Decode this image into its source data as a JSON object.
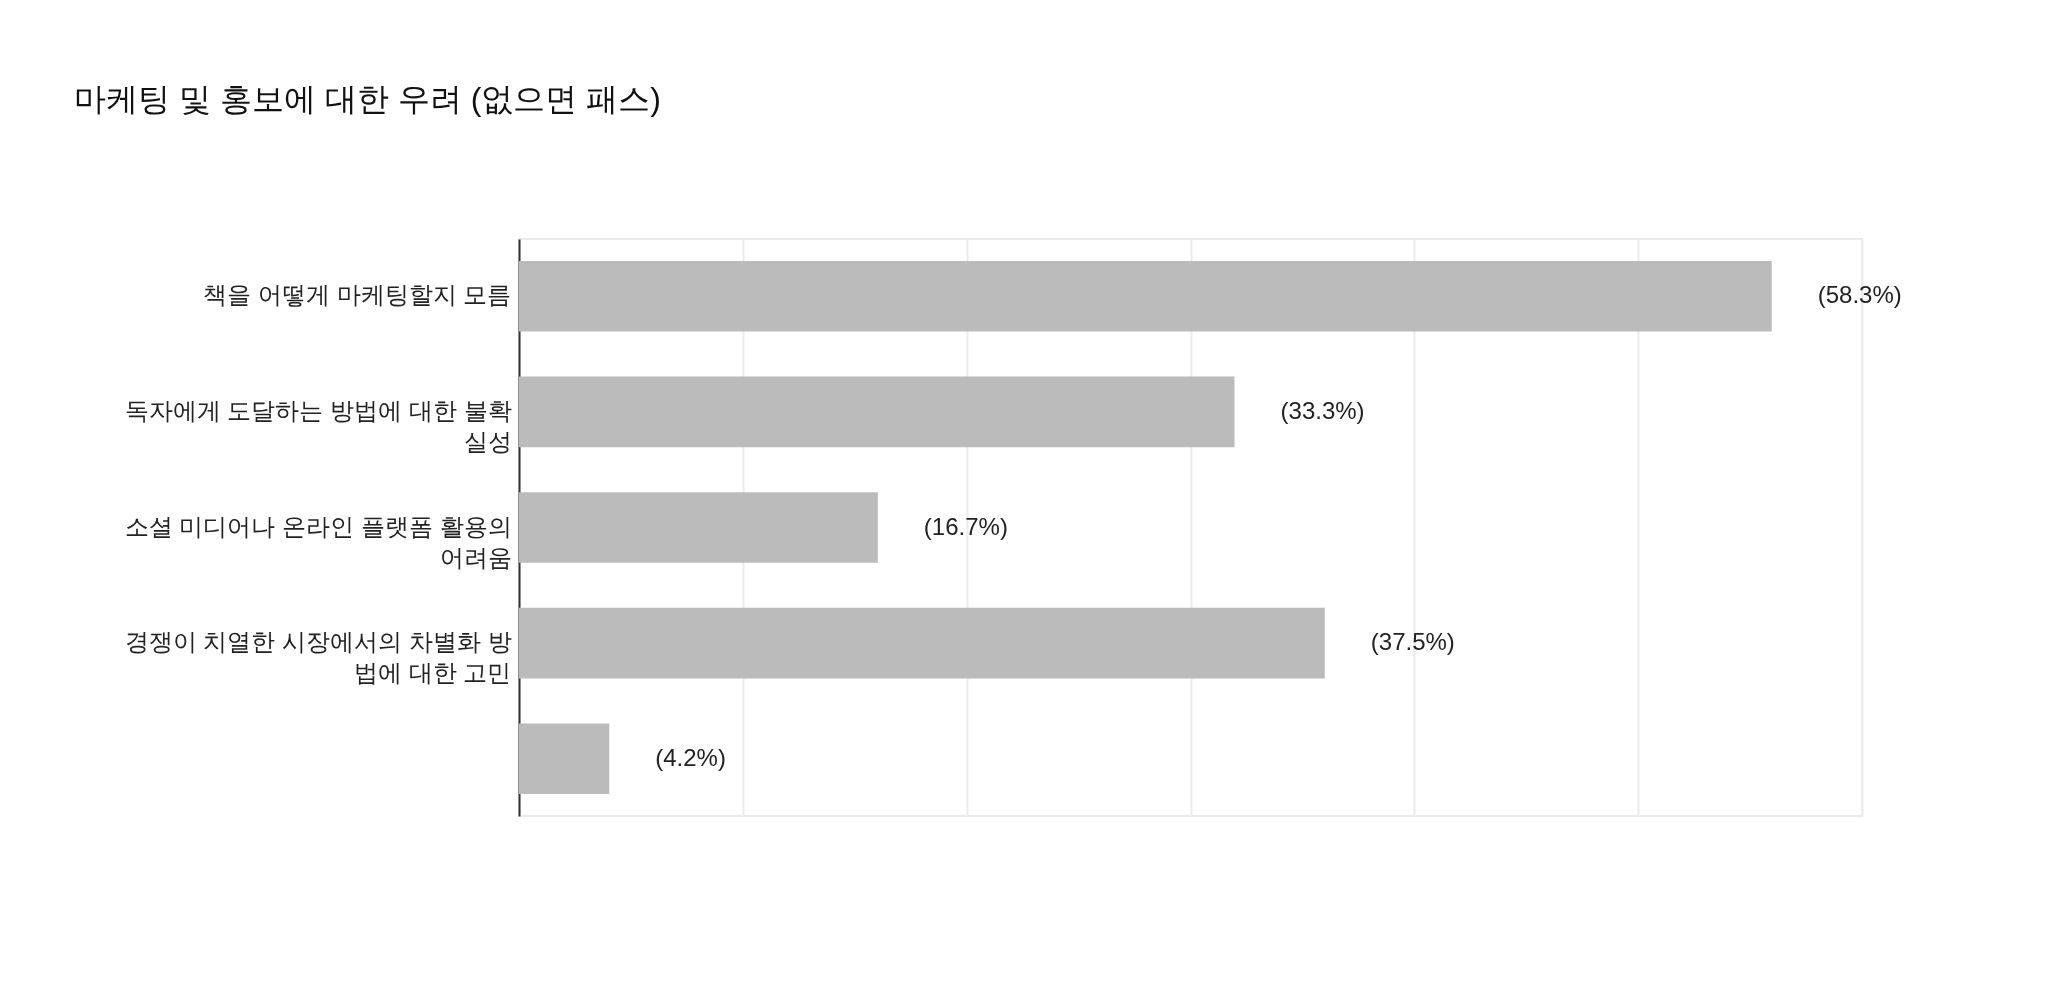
{
  "chart_data": {
    "type": "bar",
    "orientation": "horizontal",
    "title": "마케팅 및 홍보에 대한 우려 (없으면 패스)",
    "categories": [
      "책을 어떻게 마케팅할지 모름",
      "독자에게 도달하는 방법에 대한 불확실성",
      "소셜 미디어나 온라인 플랫폼 활용의 어려움",
      "경쟁이 치열한 시장에서의 차별화 방법에 대한 고민",
      null
    ],
    "values": [
      58.3,
      33.3,
      16.7,
      37.5,
      4.2
    ],
    "value_labels": [
      "(58.3%)",
      "(33.3%)",
      "(16.7%)",
      "(37.5%)",
      "(4.2%)"
    ],
    "color": "#bbbbbb",
    "xlim": [
      0,
      62.5
    ],
    "xticks": [
      {
        "value": 0,
        "label": null
      },
      {
        "value": 10.42,
        "label": null
      },
      {
        "value": 20.83,
        "label": null
      },
      {
        "value": 31.25,
        "label": null
      },
      {
        "value": 41.67,
        "label": null
      },
      {
        "value": 52.08,
        "label": null
      },
      {
        "value": 62.5,
        "label": null
      }
    ],
    "grid": "x",
    "tick_labels": "y"
  }
}
